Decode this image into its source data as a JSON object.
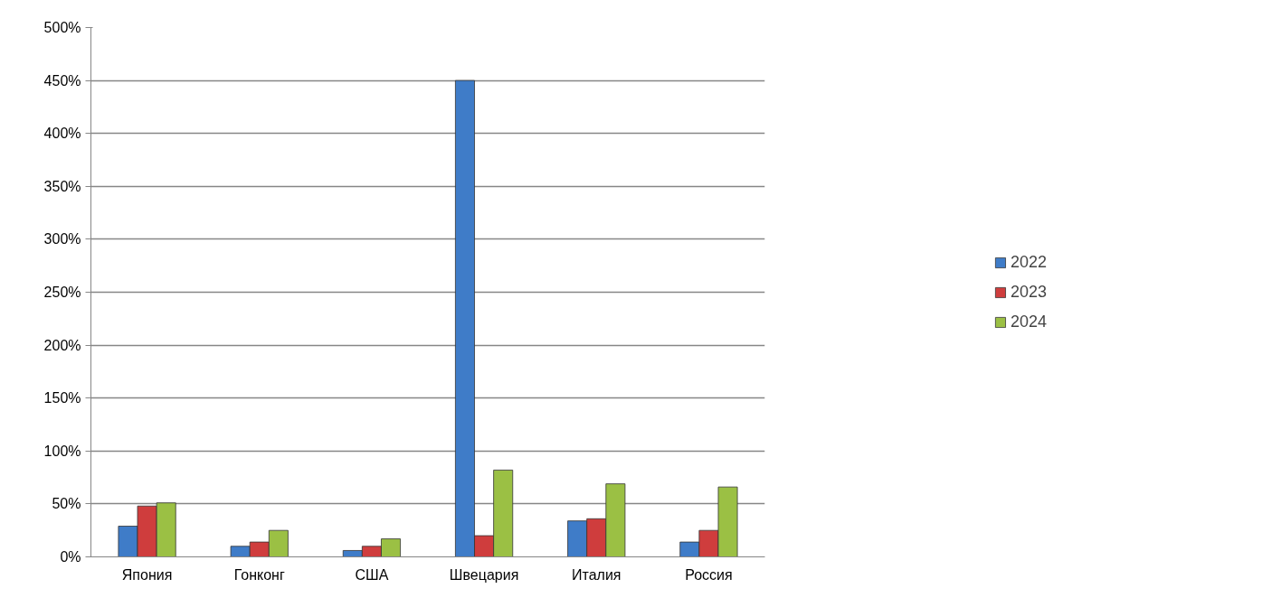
{
  "chart_data": {
    "type": "bar",
    "categories": [
      "Япония",
      "Гонконг",
      "США",
      "Швецария",
      "Италия",
      "Россия"
    ],
    "series": [
      {
        "name": "2022",
        "color": "#3f7cc8",
        "values": [
          29,
          10,
          6,
          450,
          34,
          14
        ]
      },
      {
        "name": "2023",
        "color": "#cf3d3d",
        "values": [
          48,
          14,
          10,
          20,
          36,
          25
        ]
      },
      {
        "name": "2024",
        "color": "#9bc044",
        "values": [
          51,
          25,
          17,
          82,
          69,
          66
        ]
      }
    ],
    "ylim": [
      0,
      500
    ],
    "yticks": [
      {
        "value": 0,
        "label": "0%"
      },
      {
        "value": 50,
        "label": "50%"
      },
      {
        "value": 100,
        "label": "100%"
      },
      {
        "value": 150,
        "label": "150%"
      },
      {
        "value": 200,
        "label": "200%"
      },
      {
        "value": 250,
        "label": "250%"
      },
      {
        "value": 300,
        "label": "300%"
      },
      {
        "value": 350,
        "label": "350%"
      },
      {
        "value": 400,
        "label": "400%"
      },
      {
        "value": 450,
        "label": "450%"
      },
      {
        "value": 500,
        "label": "500%"
      }
    ],
    "grid": "y",
    "legend": "right"
  }
}
